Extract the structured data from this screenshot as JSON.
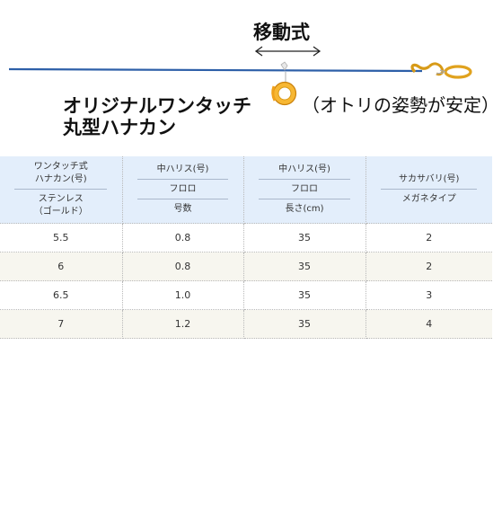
{
  "diagram": {
    "move_label": "移動式",
    "title_line1": "オリジナルワンタッチ",
    "title_line2": "丸型ハナカン",
    "note": "（オトリの姿勢が安定）"
  },
  "table": {
    "headers": [
      {
        "top": [
          "ワンタッチ式",
          "ハナカン(号)"
        ],
        "bottom": [
          "ステンレス",
          "（ゴールド）"
        ]
      },
      {
        "top": [
          "中ハリス(号)"
        ],
        "middle": [
          "フロロ"
        ],
        "bottom": [
          "号数"
        ]
      },
      {
        "top": [
          "中ハリス(号)"
        ],
        "middle": [
          "フロロ"
        ],
        "bottom": [
          "長さ(cm)"
        ]
      },
      {
        "top": [
          "サカサバリ(号)"
        ],
        "bottom": [
          "メガネタイプ"
        ]
      }
    ],
    "rows": [
      [
        "5.5",
        "0.8",
        "35",
        "2"
      ],
      [
        "6",
        "0.8",
        "35",
        "2"
      ],
      [
        "6.5",
        "1.0",
        "35",
        "3"
      ],
      [
        "7",
        "1.2",
        "35",
        "4"
      ]
    ]
  },
  "colors": {
    "line": "#2d5fa8",
    "ring": "#f0a21c",
    "header_bg": "#e3eefb",
    "alt_row_bg": "#f7f6ef"
  }
}
